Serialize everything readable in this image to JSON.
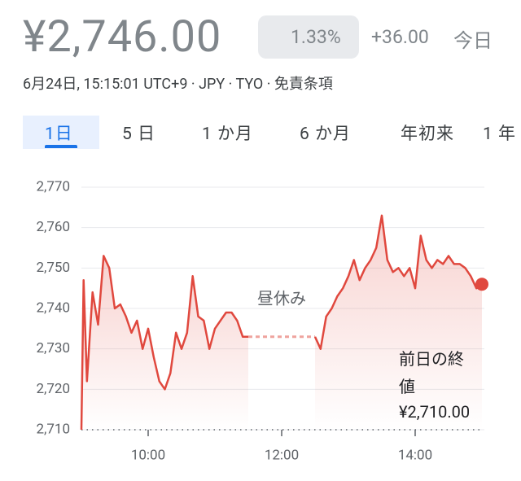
{
  "header": {
    "price": "¥2,746.00",
    "change_percent": "1.33%",
    "change": "+36.00",
    "period": "今日",
    "timestamp": "6月24日, 15:15:01 UTC+9 · JPY · TYO · 免責条項"
  },
  "tabs": [
    "1日",
    "5 日",
    "1 か月",
    "6 か月",
    "年初来",
    "1 年"
  ],
  "chart_data": {
    "type": "line",
    "x": [
      "09:00",
      "09:02",
      "09:05",
      "09:10",
      "09:15",
      "09:20",
      "09:25",
      "09:30",
      "09:35",
      "09:40",
      "09:45",
      "09:50",
      "09:55",
      "10:00",
      "10:05",
      "10:10",
      "10:15",
      "10:20",
      "10:25",
      "10:30",
      "10:35",
      "10:40",
      "10:45",
      "10:50",
      "10:55",
      "11:00",
      "11:05",
      "11:10",
      "11:15",
      "11:20",
      "11:25",
      "11:30",
      "12:00",
      "12:30",
      "12:35",
      "12:40",
      "12:45",
      "12:50",
      "12:55",
      "13:00",
      "13:05",
      "13:10",
      "13:15",
      "13:20",
      "13:25",
      "13:30",
      "13:35",
      "13:40",
      "13:45",
      "13:50",
      "13:55",
      "14:00",
      "14:05",
      "14:10",
      "14:15",
      "14:20",
      "14:25",
      "14:30",
      "14:35",
      "14:40",
      "14:45",
      "14:50",
      "14:55",
      "15:00"
    ],
    "values": [
      2710,
      2747,
      2722,
      2744,
      2736,
      2753,
      2750,
      2740,
      2741,
      2738,
      2734,
      2737,
      2730,
      2735,
      2728,
      2722,
      2720,
      2724,
      2734,
      2730,
      2734,
      2748,
      2738,
      2737,
      2730,
      2735,
      2737,
      2739,
      2739,
      2737,
      2733,
      2733,
      null,
      2733,
      2730,
      2738,
      2740,
      2743,
      2745,
      2748,
      2752,
      2747,
      2750,
      2752,
      2755,
      2763,
      2752,
      2749,
      2750,
      2748,
      2750,
      2745,
      2758,
      2752,
      2750,
      2752,
      2751,
      2753,
      2751,
      2751,
      2750,
      2748,
      2745,
      2746
    ],
    "color": "#e0483e",
    "xlim": [
      "09:00",
      "15:00"
    ],
    "xticks": [
      "10:00",
      "12:00",
      "14:00"
    ],
    "ylim": [
      2710,
      2770
    ],
    "yticks": [
      {
        "value": 2710,
        "label": "2,710"
      },
      {
        "value": 2720,
        "label": "2,720"
      },
      {
        "value": 2730,
        "label": "2,730"
      },
      {
        "value": 2740,
        "label": "2,740"
      },
      {
        "value": 2750,
        "label": "2,750"
      },
      {
        "value": 2760,
        "label": "2,760"
      },
      {
        "value": 2770,
        "label": "2,770"
      }
    ],
    "grid": true,
    "gap_annotation": "昼休み",
    "previous_close": 2710,
    "previous_close_title": "前日の終値",
    "previous_close_label": "¥2,710.00"
  }
}
